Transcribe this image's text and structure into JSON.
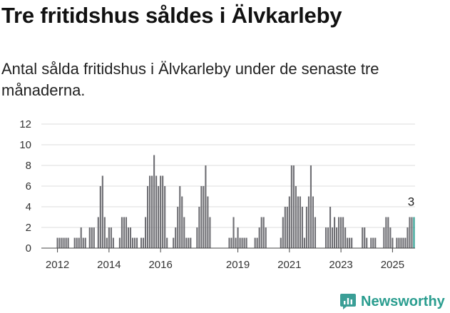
{
  "header": {
    "title": "Tre fritidshus såldes i Älvkarleby",
    "subtitle": "Antal sålda fritidshus i Älvkarleby under de senaste tre månaderna."
  },
  "brand": {
    "name": "Newsworthy",
    "icon": "newsworthy-logo-icon",
    "color": "#3a9e96"
  },
  "chart_data": {
    "type": "bar",
    "title": "Tre fritidshus såldes i Älvkarleby",
    "subtitle": "Antal sålda fritidshus i Älvkarleby under de senaste tre månaderna.",
    "ylim": [
      0,
      12
    ],
    "y_ticks": [
      "0",
      "2",
      "4",
      "6",
      "8",
      "10",
      "12"
    ],
    "x_ticks": [
      {
        "label": "2012",
        "index": 7
      },
      {
        "label": "2014",
        "index": 31
      },
      {
        "label": "2016",
        "index": 55
      },
      {
        "label": "2019",
        "index": 91
      },
      {
        "label": "2021",
        "index": 115
      },
      {
        "label": "2023",
        "index": 139
      },
      {
        "label": "2025",
        "index": 163
      }
    ],
    "grid": true,
    "colors": {
      "bar": "#6e6e73",
      "highlight": "#2a9d8f",
      "grid": "#dddddd"
    },
    "highlight_label": "3",
    "values": [
      0,
      0,
      0,
      0,
      0,
      0,
      0,
      1,
      1,
      1,
      1,
      1,
      1,
      0,
      0,
      1,
      1,
      1,
      2,
      1,
      1,
      0,
      2,
      2,
      2,
      0,
      3,
      6,
      7,
      3,
      1,
      2,
      2,
      1,
      0,
      0,
      1,
      3,
      3,
      3,
      2,
      2,
      1,
      1,
      1,
      0,
      1,
      1,
      3,
      6,
      7,
      7,
      9,
      7,
      6,
      7,
      7,
      6,
      1,
      0,
      0,
      1,
      2,
      4,
      6,
      5,
      3,
      1,
      1,
      1,
      0,
      0,
      2,
      4,
      6,
      6,
      8,
      5,
      3,
      0,
      0,
      0,
      0,
      0,
      0,
      0,
      0,
      1,
      1,
      3,
      1,
      2,
      1,
      1,
      1,
      1,
      0,
      0,
      0,
      1,
      1,
      2,
      3,
      3,
      2,
      0,
      0,
      0,
      0,
      0,
      0,
      1,
      3,
      4,
      4,
      5,
      8,
      8,
      6,
      5,
      5,
      4,
      1,
      4,
      5,
      8,
      5,
      3,
      0,
      0,
      0,
      0,
      2,
      2,
      4,
      2,
      3,
      2,
      3,
      3,
      3,
      2,
      1,
      1,
      1,
      0,
      0,
      0,
      0,
      2,
      2,
      1,
      0,
      1,
      1,
      1,
      0,
      0,
      0,
      2,
      3,
      3,
      2,
      1,
      0,
      1,
      1,
      1,
      1,
      1,
      2,
      3,
      3,
      3
    ]
  }
}
